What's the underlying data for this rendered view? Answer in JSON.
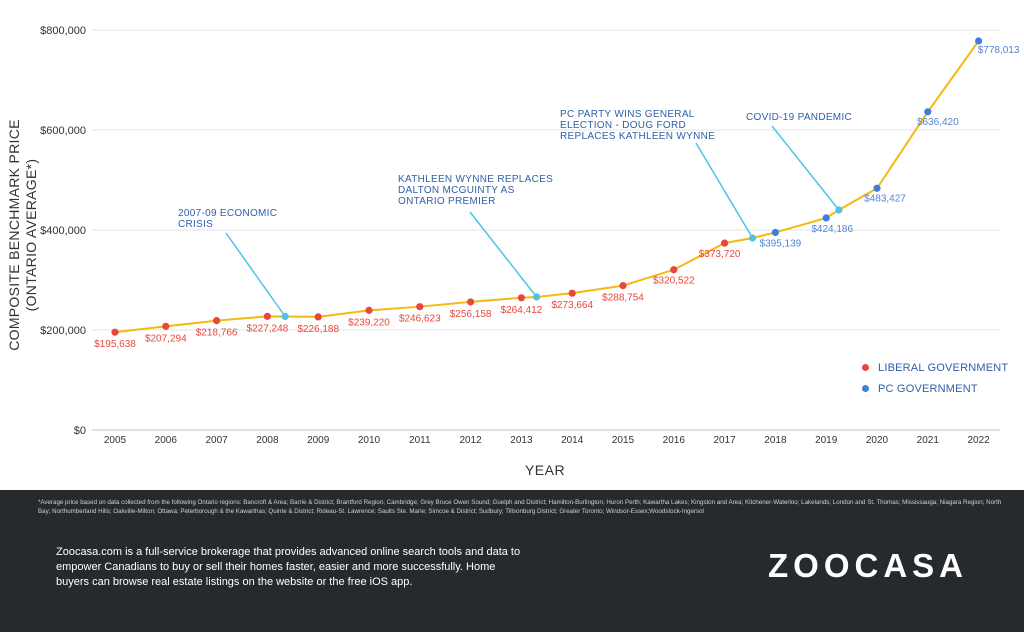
{
  "chart_data": {
    "type": "line",
    "xlabel": "YEAR",
    "ylabel": "COMPOSITE BENCHMARK PRICE (ONTARIO AVERAGE*)",
    "ylim": [
      0,
      800000
    ],
    "y_ticks": [
      0,
      200000,
      400000,
      600000,
      800000
    ],
    "y_tick_labels": [
      "$0",
      "$200,000",
      "$400,000",
      "$600,000",
      "$800,000"
    ],
    "x_ticks": [
      2005,
      2006,
      2007,
      2008,
      2009,
      2010,
      2011,
      2012,
      2013,
      2014,
      2015,
      2016,
      2017,
      2018,
      2019,
      2020,
      2021,
      2022
    ],
    "grid": "horizontal",
    "line_color": "#f5b90f",
    "points": [
      {
        "x": 2005,
        "y": 195638,
        "label": "$195,638",
        "gov": "liberal"
      },
      {
        "x": 2006,
        "y": 207294,
        "label": "$207,294",
        "gov": "liberal"
      },
      {
        "x": 2007,
        "y": 218766,
        "label": "$218,766",
        "gov": "liberal"
      },
      {
        "x": 2008,
        "y": 227248,
        "label": "$227,248",
        "gov": "liberal"
      },
      {
        "x": 2009,
        "y": 226188,
        "label": "$226,188",
        "gov": "liberal"
      },
      {
        "x": 2010,
        "y": 239220,
        "label": "$239,220",
        "gov": "liberal"
      },
      {
        "x": 2011,
        "y": 246623,
        "label": "$246,623",
        "gov": "liberal"
      },
      {
        "x": 2012,
        "y": 256158,
        "label": "$256,158",
        "gov": "liberal"
      },
      {
        "x": 2013,
        "y": 264412,
        "label": "$264,412",
        "gov": "liberal"
      },
      {
        "x": 2014,
        "y": 273664,
        "label": "$273,664",
        "gov": "liberal"
      },
      {
        "x": 2015,
        "y": 288754,
        "label": "$288,754",
        "gov": "liberal"
      },
      {
        "x": 2016,
        "y": 320522,
        "label": "$320,522",
        "gov": "liberal"
      },
      {
        "x": 2017,
        "y": 373720,
        "label": "$373,720",
        "gov": "liberal"
      },
      {
        "x": 2018,
        "y": 395139,
        "label": "$395,139",
        "gov": "pc"
      },
      {
        "x": 2019,
        "y": 424186,
        "label": "$424,186",
        "gov": "pc"
      },
      {
        "x": 2020,
        "y": 483427,
        "label": "$483,427",
        "gov": "pc"
      },
      {
        "x": 2021,
        "y": 636420,
        "label": "$636,420",
        "gov": "pc"
      },
      {
        "x": 2022,
        "y": 778013,
        "label": "$778,013",
        "gov": "pc"
      }
    ],
    "event_points": [
      {
        "x": 2008.35,
        "y": 227000
      },
      {
        "x": 2013.3,
        "y": 266000
      },
      {
        "x": 2017.55,
        "y": 384000
      },
      {
        "x": 2019.25,
        "y": 440000
      }
    ],
    "annotations": [
      {
        "lines": [
          "2007-09 ECONOMIC",
          "CRISIS"
        ],
        "x": 2008.35,
        "y": 227000
      },
      {
        "lines": [
          "KATHLEEN WYNNE REPLACES",
          "DALTON MCGUINTY AS",
          "ONTARIO PREMIER"
        ],
        "x": 2013.3,
        "y": 266000
      },
      {
        "lines": [
          "PC PARTY WINS GENERAL",
          "ELECTION - DOUG FORD",
          "REPLACES KATHLEEN WYNNE"
        ],
        "x": 2017.55,
        "y": 384000
      },
      {
        "lines": [
          "COVID-19 PANDEMIC"
        ],
        "x": 2019.25,
        "y": 440000
      }
    ],
    "legend": [
      {
        "label": "LIBERAL GOVERNMENT",
        "color": "#e8473c"
      },
      {
        "label": "PC GOVERNMENT",
        "color": "#3b7fe0"
      }
    ],
    "legend_position": "right",
    "colors": {
      "liberal": "#e8473c",
      "pc": "#3b7fe0",
      "event": "#4cc3e8",
      "label_liberal": "#e8473c",
      "label_pc": "#4e86d6",
      "annotation": "#2f5fa7"
    }
  },
  "footer": {
    "footnote": "*Average price based on data collected from the following Ontario regions: Bancroft & Area; Barrie & District; Brantford Region; Cambridge; Grey Bruce Owen Sound; Guelph and District; Hamilton-Burlington; Huron Perth; Kawartha Lakes; Kingston and Area; Kitchener-Waterloo; Lakelands; London and St. Thomas; Mississauga; Niagara Region; North Bay; Northumberland Hills; Oakville-Milton; Ottawa; Peterborough & the Kawarthas; Quinte & District; Rideau-St. Lawrence; Saults Ste. Marie; Simcoe & District; Sudbury; Tillsonburg District; Greater Toronto; Windsor-Essex;Woodstock-Ingersol",
    "about": "Zoocasa.com is a full-service brokerage that provides advanced online search tools and data to empower Canadians to buy or sell their homes faster, easier and more successfully. Home buyers can browse real estate listings on the website or the free iOS app.",
    "logo": "ZOOCASA"
  }
}
